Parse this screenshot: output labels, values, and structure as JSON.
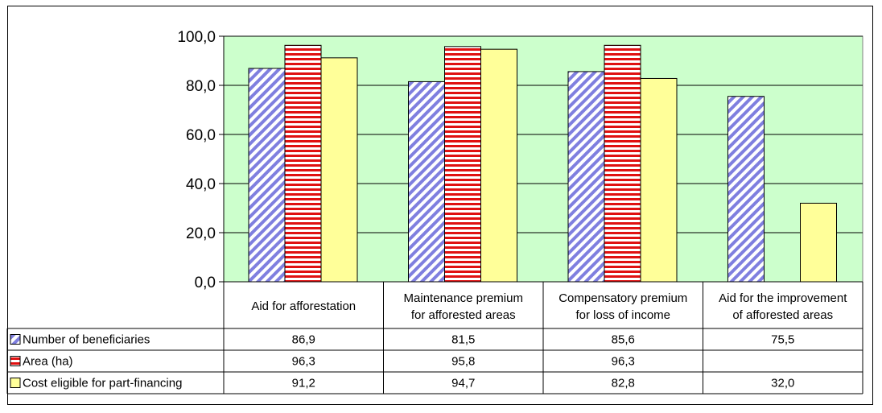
{
  "chart_data": {
    "type": "bar",
    "categories": [
      [
        "Aid for afforestation"
      ],
      [
        "Maintenance premium",
        "for afforested areas"
      ],
      [
        "Compensatory premium",
        "for loss of income"
      ],
      [
        "Aid for the improvement",
        "of afforested areas"
      ]
    ],
    "series": [
      {
        "name": "Number of beneficiaries",
        "values": [
          86.9,
          81.5,
          85.6,
          75.5
        ],
        "labels": [
          "86,9",
          "81,5",
          "85,6",
          "75,5"
        ],
        "pattern": "diagonal-stripes",
        "colors": [
          "#7f7fdf",
          "#ffffff"
        ]
      },
      {
        "name": "Area (ha)",
        "values": [
          96.3,
          95.8,
          96.3,
          null
        ],
        "labels": [
          "96,3",
          "95,8",
          "96,3",
          ""
        ],
        "pattern": "horizontal-stripes",
        "colors": [
          "#e01010",
          "#ffffff"
        ]
      },
      {
        "name": "Cost eligible for part-financing",
        "values": [
          91.2,
          94.7,
          82.8,
          32.0
        ],
        "labels": [
          "91,2",
          "94,7",
          "82,8",
          "32,0"
        ],
        "pattern": "solid",
        "colors": [
          "#ffff99"
        ]
      }
    ],
    "yticks": [
      "0,0",
      "20,0",
      "40,0",
      "60,0",
      "80,0",
      "100,0"
    ],
    "ylim": [
      0,
      100
    ],
    "grid": true,
    "plot_background": "#ccffcc",
    "legend": "data-table"
  }
}
